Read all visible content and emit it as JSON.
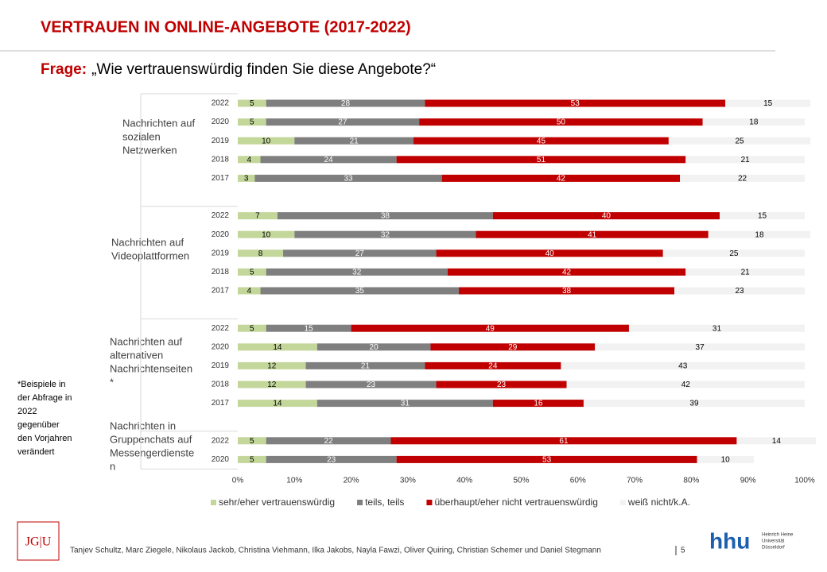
{
  "chart_data": {
    "type": "bar",
    "orientation": "horizontal",
    "stacked": true,
    "title": "VERTRAUEN IN ONLINE-ANGEBOTE (2017-2022)",
    "question_prefix": "Frage:",
    "question": "„Wie vertrauenswürdig finden Sie diese Angebote?“",
    "series": [
      {
        "name": "sehr/eher vertrauenswürdig",
        "color": "#c4d79b"
      },
      {
        "name": "teils, teils",
        "color": "#7f7f7f"
      },
      {
        "name": "überhaupt/eher nicht vertrauenswürdig",
        "color": "#c00000"
      },
      {
        "name": "weiß nicht/k.A.",
        "color": "#f2f2f2"
      }
    ],
    "groups": [
      {
        "label": [
          "Nachrichten auf",
          "sozialen",
          "Netzwerken"
        ],
        "categories": [
          "2022",
          "2020",
          "2019",
          "2018",
          "2017"
        ],
        "values": [
          [
            5,
            5,
            10,
            4,
            3
          ],
          [
            28,
            27,
            21,
            24,
            33
          ],
          [
            53,
            50,
            45,
            51,
            42
          ],
          [
            15,
            18,
            25,
            21,
            22
          ]
        ]
      },
      {
        "label": [
          "Nachrichten auf",
          "Videoplattformen"
        ],
        "categories": [
          "2022",
          "2020",
          "2019",
          "2018",
          "2017"
        ],
        "values": [
          [
            7,
            10,
            8,
            5,
            4
          ],
          [
            38,
            32,
            27,
            32,
            35
          ],
          [
            40,
            41,
            40,
            42,
            38
          ],
          [
            15,
            18,
            25,
            21,
            23
          ]
        ]
      },
      {
        "label": [
          "Nachrichten auf",
          "alternativen",
          "Nachrichtenseiten",
          "*"
        ],
        "categories": [
          "2022",
          "2020",
          "2019",
          "2018",
          "2017"
        ],
        "values": [
          [
            5,
            14,
            12,
            12,
            14
          ],
          [
            15,
            20,
            21,
            23,
            31
          ],
          [
            49,
            29,
            24,
            23,
            16
          ],
          [
            31,
            37,
            43,
            42,
            39
          ]
        ]
      },
      {
        "label": [
          "Nachrichten in",
          "Gruppenchats auf",
          "Messengerdienste",
          "n"
        ],
        "categories": [
          "2022",
          "2020"
        ],
        "values": [
          [
            5,
            5
          ],
          [
            22,
            23
          ],
          [
            61,
            53
          ],
          [
            14,
            10
          ]
        ]
      }
    ],
    "xlim": [
      0,
      100
    ],
    "xticks": [
      {
        "value": 0,
        "label": "0%"
      },
      {
        "value": 10,
        "label": "10%"
      },
      {
        "value": 20,
        "label": "20%"
      },
      {
        "value": 30,
        "label": "30%"
      },
      {
        "value": 40,
        "label": "40%"
      },
      {
        "value": 50,
        "label": "50%"
      },
      {
        "value": 60,
        "label": "60%"
      },
      {
        "value": 70,
        "label": "70%"
      },
      {
        "value": 80,
        "label": "80%"
      },
      {
        "value": 90,
        "label": "90%"
      },
      {
        "value": 100,
        "label": "100%"
      }
    ],
    "legend": "bottom"
  },
  "footnote": [
    "*Beispiele in",
    "der Abfrage in",
    "2022",
    "gegenüber",
    "den Vorjahren",
    "verändert"
  ],
  "footer": {
    "authors": "Tanjev Schultz, Marc Ziegele, Nikolaus Jackob, Christina Viehmann, Ilka Jakobs, Nayla Fawzi, Oliver Quiring, Christian Schemer und Daniel Stegmann",
    "page": "5",
    "logo_left": "JG|U",
    "logo_right": "hhu",
    "logo_right_sub": [
      "Heinrich Heine",
      "Universität",
      "Düsseldorf"
    ]
  }
}
